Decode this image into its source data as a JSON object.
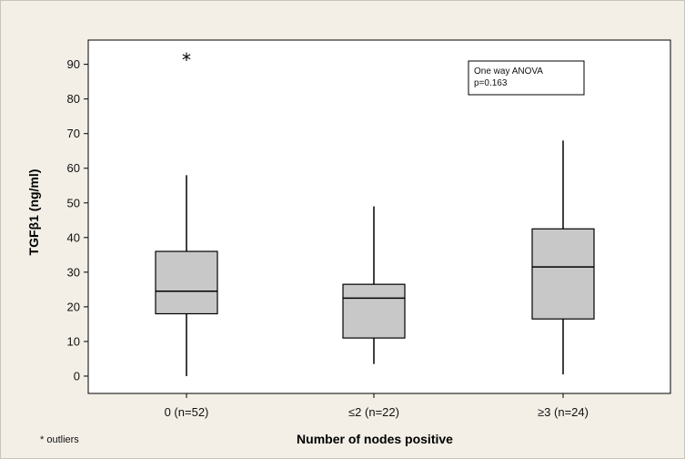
{
  "chart_data": {
    "type": "boxplot",
    "title": "",
    "xlabel": "Number of nodes positive",
    "ylabel": "TGFβ1 (ng/ml)",
    "ylim": [
      -5,
      97
    ],
    "yticks": [
      0,
      10,
      20,
      30,
      40,
      50,
      60,
      70,
      80,
      90
    ],
    "grid": false,
    "categories": [
      "0 (n=52)",
      "≤2 (n=22)",
      "≥3 (n=24)"
    ],
    "boxes": [
      {
        "min": 0,
        "q1": 18,
        "median": 24.5,
        "q3": 36,
        "max": 58,
        "outliers": [
          91.5
        ]
      },
      {
        "min": 3.5,
        "q1": 11,
        "median": 22.5,
        "q3": 26.5,
        "max": 49,
        "outliers": []
      },
      {
        "min": 0.5,
        "q1": 16.5,
        "median": 31.5,
        "q3": 42.5,
        "max": 68,
        "outliers": []
      }
    ],
    "annotation": {
      "line1": "One way ANOVA",
      "line2": "p=0.163"
    },
    "footnote": "* outliers",
    "box_fill": "#c8c8c8",
    "plot_background": "#ffffff"
  }
}
